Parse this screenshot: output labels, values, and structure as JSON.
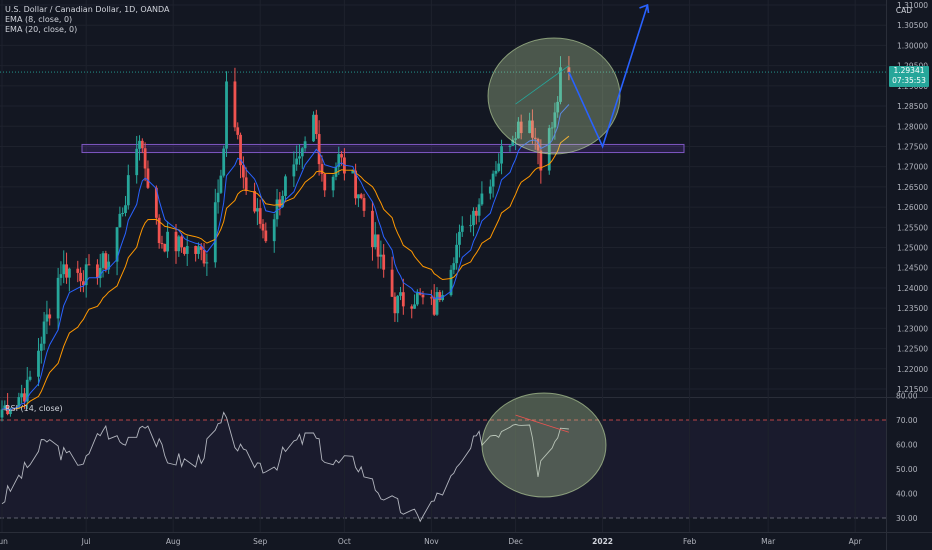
{
  "header": {
    "symbol_line": "U.S. Dollar / Canadian Dollar, 1D, OANDA",
    "ema8_label": "EMA (8, close, 0)",
    "ema20_label": "EMA (20, close, 0)",
    "rsi_label": "RSI (14, close)",
    "currency": "CAD"
  },
  "price_tag": {
    "price": "1.29341",
    "countdown": "07:35:53"
  },
  "colors": {
    "bg": "#131722",
    "up": "#26a69a",
    "down": "#ef5350",
    "ema8": "#2962ff",
    "ema20": "#ff9800",
    "rsi": "#b2b5be",
    "zone_fill": "#673ab7",
    "zone_stroke": "#7e57c2",
    "ellipse_fill": "#c5e1a5",
    "arrow": "#2962ff",
    "axis_text": "#b2b5be"
  },
  "chart_data": [
    {
      "type": "candlestick",
      "title": "U.S. Dollar / Canadian Dollar, 1D, OANDA",
      "ylim": [
        1.21,
        1.31
      ],
      "y_ticks": [
        "1.31000",
        "1.30500",
        "1.30000",
        "1.29500",
        "1.29000",
        "1.28500",
        "1.28000",
        "1.27500",
        "1.27000",
        "1.26500",
        "1.26000",
        "1.25500",
        "1.25000",
        "1.24500",
        "1.24000",
        "1.23500",
        "1.23000",
        "1.22500",
        "1.22000",
        "1.21500"
      ],
      "x_ticks": [
        "Jun",
        "Jul",
        "Aug",
        "Sep",
        "Oct",
        "Nov",
        "Dec",
        "2022",
        "Feb",
        "Mar",
        "Apr"
      ],
      "x_start": "2021-06-01",
      "x_end": "2022-04-30",
      "last_price": 1.29341,
      "horizontal_zone": [
        1.2735,
        1.2755
      ],
      "series": [
        {
          "name": "EMA (8, close, 0)"
        },
        {
          "name": "EMA (20, close, 0)"
        }
      ],
      "anchors": [
        [
          "2021-06-01",
          1.21
        ],
        [
          "2021-06-10",
          1.215
        ],
        [
          "2021-06-22",
          1.245
        ],
        [
          "2021-07-02",
          1.243
        ],
        [
          "2021-07-09",
          1.247
        ],
        [
          "2021-07-16",
          1.265
        ],
        [
          "2021-07-20",
          1.278
        ],
        [
          "2021-07-27",
          1.252
        ],
        [
          "2021-08-05",
          1.25
        ],
        [
          "2021-08-13",
          1.248
        ],
        [
          "2021-08-19",
          1.275
        ],
        [
          "2021-08-20",
          1.29
        ],
        [
          "2021-08-27",
          1.264
        ],
        [
          "2021-09-03",
          1.253
        ],
        [
          "2021-09-10",
          1.266
        ],
        [
          "2021-09-15",
          1.27
        ],
        [
          "2021-09-20",
          1.282
        ],
        [
          "2021-09-24",
          1.265
        ],
        [
          "2021-09-29",
          1.272
        ],
        [
          "2021-10-06",
          1.264
        ],
        [
          "2021-10-13",
          1.248
        ],
        [
          "2021-10-19",
          1.236
        ],
        [
          "2021-10-26",
          1.238
        ],
        [
          "2021-11-02",
          1.235
        ],
        [
          "2021-11-09",
          1.249
        ],
        [
          "2021-11-18",
          1.262
        ],
        [
          "2021-11-25",
          1.272
        ],
        [
          "2021-12-01",
          1.28
        ],
        [
          "2021-12-06",
          1.282
        ],
        [
          "2021-12-10",
          1.272
        ],
        [
          "2021-12-15",
          1.282
        ],
        [
          "2021-12-17",
          1.292
        ],
        [
          "2021-12-20",
          1.2934
        ]
      ],
      "projection": [
        [
          "2021-12-20",
          1.2934
        ],
        [
          "2022-01-01",
          1.275
        ],
        [
          "2022-01-17",
          1.31
        ]
      ]
    },
    {
      "type": "line",
      "title": "RSI (14, close)",
      "ylim": [
        25,
        80
      ],
      "y_ticks": [
        "80.00",
        "70.00",
        "60.00",
        "50.00",
        "40.00",
        "30.00"
      ],
      "levels": [
        70,
        30
      ],
      "series": [
        {
          "name": "RSI (14, close)"
        }
      ],
      "anchors": [
        [
          "2021-06-01",
          37
        ],
        [
          "2021-06-17",
          62
        ],
        [
          "2021-06-24",
          55
        ],
        [
          "2021-07-01",
          53
        ],
        [
          "2021-07-07",
          67
        ],
        [
          "2021-07-14",
          60
        ],
        [
          "2021-07-22",
          70
        ],
        [
          "2021-07-29",
          55
        ],
        [
          "2021-08-09",
          52
        ],
        [
          "2021-08-19",
          70
        ],
        [
          "2021-08-26",
          55
        ],
        [
          "2021-09-05",
          50
        ],
        [
          "2021-09-12",
          60
        ],
        [
          "2021-09-20",
          64
        ],
        [
          "2021-09-25",
          52
        ],
        [
          "2021-10-05",
          53
        ],
        [
          "2021-10-14",
          40
        ],
        [
          "2021-10-21",
          34
        ],
        [
          "2021-10-27",
          30
        ],
        [
          "2021-11-02",
          37
        ],
        [
          "2021-11-09",
          47
        ],
        [
          "2021-11-17",
          62
        ],
        [
          "2021-11-24",
          65
        ],
        [
          "2021-12-01",
          71
        ],
        [
          "2021-12-06",
          70
        ],
        [
          "2021-12-09",
          50
        ],
        [
          "2021-12-13",
          60
        ],
        [
          "2021-12-16",
          66
        ],
        [
          "2021-12-20",
          68
        ]
      ]
    }
  ]
}
